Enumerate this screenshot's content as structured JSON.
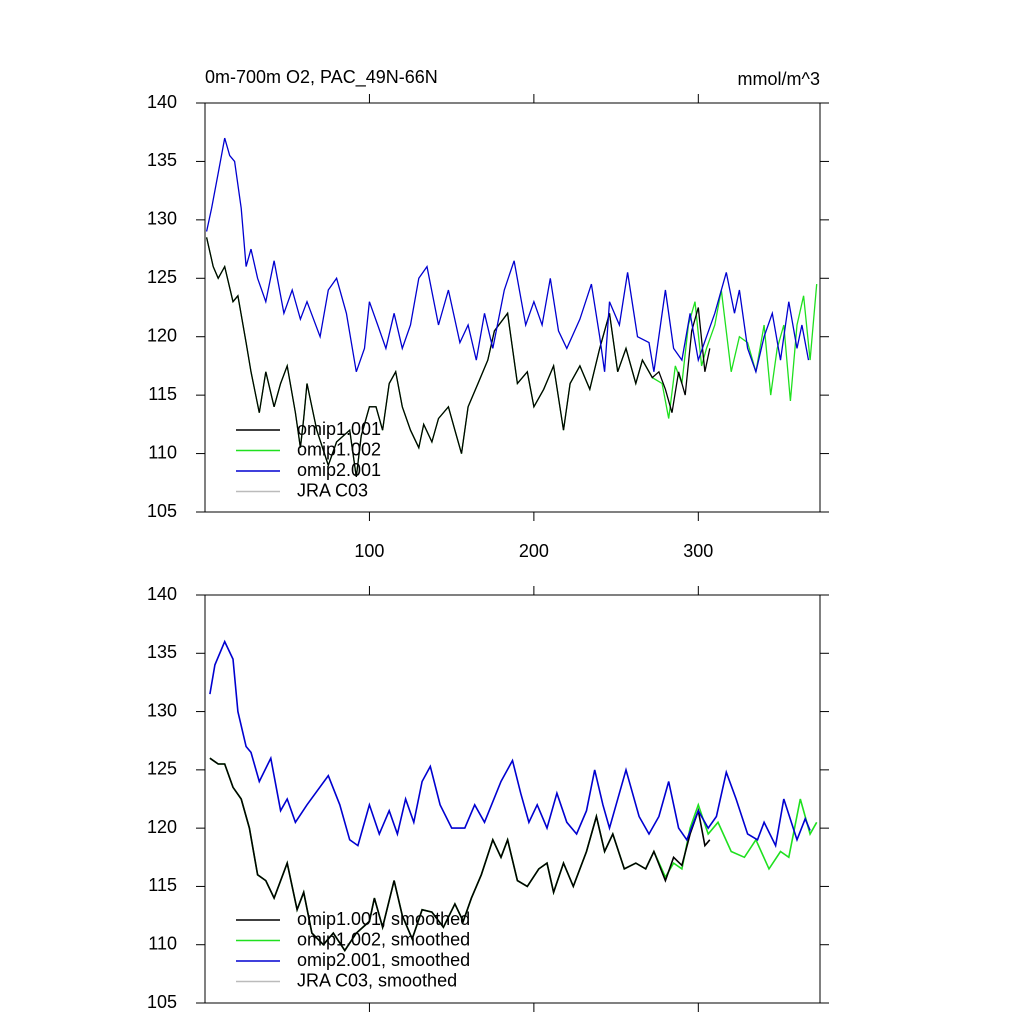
{
  "chart_data": [
    {
      "type": "line",
      "title": "0m-700m O2, PAC_49N-66N",
      "units_label": "mmol/m^3",
      "xlim": [
        0,
        374
      ],
      "ylim": [
        105,
        140
      ],
      "xticks": [
        100,
        200,
        300
      ],
      "yticks": [
        105,
        110,
        115,
        120,
        125,
        130,
        135,
        140
      ],
      "xtick_labels": true,
      "series": [
        {
          "name": "omip1.001",
          "color": "#000000",
          "x": [
            1,
            5,
            8,
            12,
            17,
            20,
            25,
            28,
            33,
            37,
            42,
            46,
            50,
            55,
            58,
            60,
            62,
            68,
            75,
            80,
            88,
            92,
            95,
            100,
            104,
            108,
            112,
            116,
            120,
            125,
            130,
            133,
            138,
            142,
            148,
            152,
            156,
            160,
            166,
            172,
            176,
            184,
            190,
            196,
            200,
            206,
            212,
            218,
            222,
            228,
            234,
            240,
            246,
            251,
            256,
            262,
            266,
            272,
            276,
            280,
            284,
            288,
            292,
            296,
            300,
            304,
            307
          ],
          "values": [
            128.5,
            126,
            125,
            126,
            123,
            123.5,
            119.5,
            117,
            113.5,
            117,
            114,
            116,
            117.5,
            113.5,
            110.5,
            113,
            116,
            112,
            109,
            111,
            112,
            108,
            111.5,
            114,
            114,
            112,
            116,
            117,
            114,
            112,
            110.5,
            112.5,
            111,
            113,
            114,
            112,
            110,
            114,
            116,
            118,
            120.5,
            122,
            116,
            117,
            114,
            115.5,
            117.5,
            112,
            116,
            117.5,
            115.5,
            119,
            122,
            117,
            119,
            116,
            118,
            116.5,
            117,
            115.5,
            113.5,
            117,
            115,
            120.5,
            122.5,
            117,
            119
          ]
        },
        {
          "name": "omip1.002",
          "color": "#1fe01f",
          "x": [
            1,
            5,
            8,
            12,
            17,
            20,
            25,
            28,
            33,
            37,
            42,
            46,
            50,
            55,
            58,
            60,
            62,
            68,
            75,
            80,
            88,
            92,
            95,
            100,
            104,
            108,
            112,
            116,
            120,
            125,
            130,
            133,
            138,
            142,
            148,
            152,
            156,
            160,
            166,
            172,
            176,
            184,
            190,
            196,
            200,
            206,
            212,
            218,
            222,
            228,
            234,
            240,
            246,
            251,
            256,
            262,
            266,
            272,
            278,
            282,
            286,
            290,
            294,
            298,
            302,
            305,
            310,
            314,
            320,
            325,
            330,
            335,
            340,
            344,
            348,
            352,
            356,
            360,
            364,
            368,
            372
          ],
          "values": [
            128.5,
            126,
            125,
            126,
            123,
            123.5,
            119.5,
            117,
            113.5,
            117,
            114,
            116,
            117.5,
            113.5,
            110.5,
            113,
            116,
            112,
            109,
            111,
            112,
            108,
            111.5,
            114,
            114,
            112,
            116,
            117,
            114,
            112,
            110.5,
            112.5,
            111,
            113,
            114,
            112,
            110,
            114,
            116,
            118,
            120.5,
            122,
            116,
            117,
            114,
            115.5,
            117.5,
            112,
            116,
            117.5,
            115.5,
            119,
            122,
            117,
            119,
            116,
            118,
            116.5,
            116,
            113,
            117.5,
            116,
            121,
            123,
            117.5,
            119,
            121,
            124,
            117,
            120,
            119.5,
            117,
            121,
            115,
            119,
            121,
            114.5,
            121,
            123.5,
            118,
            124.5
          ]
        },
        {
          "name": "omip2.001",
          "color": "#0000d0",
          "x": [
            1,
            4,
            8,
            12,
            15,
            18,
            22,
            25,
            28,
            32,
            37,
            42,
            48,
            53,
            58,
            62,
            70,
            75,
            80,
            86,
            92,
            97,
            100,
            105,
            110,
            115,
            120,
            125,
            130,
            135,
            142,
            148,
            155,
            160,
            165,
            170,
            175,
            182,
            188,
            195,
            200,
            205,
            210,
            215,
            220,
            228,
            235,
            240,
            243,
            246,
            252,
            257,
            263,
            270,
            273,
            280,
            285,
            290,
            295,
            300,
            305,
            310,
            317,
            322,
            325,
            330,
            335,
            340,
            345,
            350,
            355,
            360,
            363,
            367
          ],
          "values": [
            129,
            131,
            134,
            137,
            135.5,
            135,
            131,
            126,
            127.5,
            125,
            123,
            126.5,
            122,
            124,
            121.5,
            123,
            120,
            124,
            125,
            122,
            117,
            119,
            123,
            121,
            119,
            122,
            119,
            121,
            125,
            126,
            121,
            124,
            119.5,
            121,
            118,
            122,
            119,
            124,
            126.5,
            121,
            123,
            121,
            125,
            120.5,
            119,
            121.5,
            124.5,
            120,
            117,
            123,
            121,
            125.5,
            120,
            119.5,
            117,
            124,
            119,
            118,
            122,
            118,
            120,
            122,
            125.5,
            122,
            124,
            119,
            117,
            120,
            122,
            118,
            123,
            119,
            121,
            118
          ]
        },
        {
          "name": "JRA C03",
          "color": "#bbbbbb",
          "x": [],
          "values": []
        }
      ]
    },
    {
      "type": "line",
      "xlim": [
        0,
        374
      ],
      "ylim": [
        105,
        140
      ],
      "xticks": [
        100,
        200,
        300
      ],
      "yticks": [
        105,
        110,
        115,
        120,
        125,
        130,
        135,
        140
      ],
      "xtick_labels": false,
      "series": [
        {
          "name": "omip1.001, smoothed",
          "color": "#000000",
          "x": [
            3,
            8,
            12,
            17,
            22,
            27,
            32,
            37,
            42,
            50,
            56,
            60,
            65,
            72,
            78,
            85,
            92,
            100,
            103,
            108,
            115,
            120,
            126,
            132,
            138,
            145,
            152,
            157,
            162,
            168,
            175,
            180,
            184,
            190,
            196,
            203,
            208,
            212,
            218,
            224,
            232,
            238,
            243,
            248,
            255,
            262,
            268,
            273,
            280,
            285,
            290,
            295,
            300,
            304,
            307
          ],
          "values": [
            126,
            125.5,
            125.5,
            123.5,
            122.5,
            120,
            116,
            115.5,
            114,
            117,
            113,
            114.5,
            111,
            110,
            111,
            109.5,
            111,
            112,
            114,
            111.5,
            115.5,
            112.5,
            110.5,
            113,
            112.8,
            111.5,
            113.5,
            112,
            114,
            116,
            119,
            117.5,
            119,
            115.5,
            115,
            116.5,
            117,
            114.5,
            117,
            115,
            118,
            121,
            118,
            119.5,
            116.5,
            117,
            116.5,
            118,
            115.5,
            117.5,
            116.8,
            119.5,
            121.5,
            118.5,
            119
          ]
        },
        {
          "name": "omip1.002, smoothed",
          "color": "#1fe01f",
          "x": [
            3,
            8,
            12,
            17,
            22,
            27,
            32,
            37,
            42,
            50,
            56,
            60,
            65,
            72,
            78,
            85,
            92,
            100,
            103,
            108,
            115,
            120,
            126,
            132,
            138,
            145,
            152,
            157,
            162,
            168,
            175,
            180,
            184,
            190,
            196,
            203,
            208,
            212,
            218,
            224,
            232,
            238,
            243,
            248,
            255,
            262,
            268,
            273,
            280,
            285,
            290,
            295,
            300,
            306,
            312,
            320,
            328,
            335,
            343,
            350,
            355,
            362,
            368,
            372
          ],
          "values": [
            126,
            125.5,
            125.5,
            123.5,
            122.5,
            120,
            116,
            115.5,
            114,
            117,
            113,
            114.5,
            111,
            110,
            111,
            109.5,
            111,
            112,
            114,
            111.5,
            115.5,
            112.5,
            110.5,
            113,
            112.8,
            111.5,
            113.5,
            112,
            114,
            116,
            119,
            117.5,
            119,
            115.5,
            115,
            116.5,
            117,
            114.5,
            117,
            115,
            118,
            121,
            118,
            119.5,
            116.5,
            117,
            116.5,
            118,
            115.8,
            117,
            116.5,
            120,
            122,
            119.5,
            120.5,
            118,
            117.5,
            119,
            116.5,
            118,
            117.5,
            122.5,
            119.5,
            120.5
          ]
        },
        {
          "name": "omip2.001, smoothed",
          "color": "#0000d0",
          "x": [
            3,
            6,
            12,
            17,
            20,
            25,
            28,
            33,
            40,
            46,
            50,
            55,
            62,
            75,
            82,
            88,
            93,
            100,
            106,
            112,
            117,
            122,
            127,
            132,
            137,
            143,
            150,
            158,
            164,
            170,
            180,
            187,
            192,
            197,
            202,
            208,
            214,
            220,
            226,
            232,
            237,
            242,
            246,
            250,
            256,
            264,
            270,
            276,
            282,
            288,
            293,
            300,
            306,
            311,
            317,
            323,
            330,
            336,
            340,
            347,
            352,
            360,
            365,
            368
          ],
          "values": [
            131.5,
            134,
            136,
            134.5,
            130,
            127,
            126.5,
            124,
            126,
            121.5,
            122.5,
            120.5,
            122,
            124.5,
            122,
            119,
            118.5,
            122,
            119.5,
            121.5,
            119.5,
            122.5,
            120.5,
            124,
            125.3,
            122,
            120,
            120,
            122,
            120.5,
            124,
            125.8,
            123,
            120.5,
            122,
            120,
            123,
            120.5,
            119.5,
            121.5,
            125,
            122,
            120,
            122,
            125,
            121,
            119.5,
            121,
            124,
            120,
            119,
            121.5,
            120,
            121,
            124.8,
            122.5,
            119.5,
            119,
            120.5,
            118.5,
            122.5,
            119,
            120.8,
            119.8
          ]
        },
        {
          "name": "JRA C03, smoothed",
          "color": "#bbbbbb",
          "x": [],
          "values": []
        }
      ]
    }
  ]
}
